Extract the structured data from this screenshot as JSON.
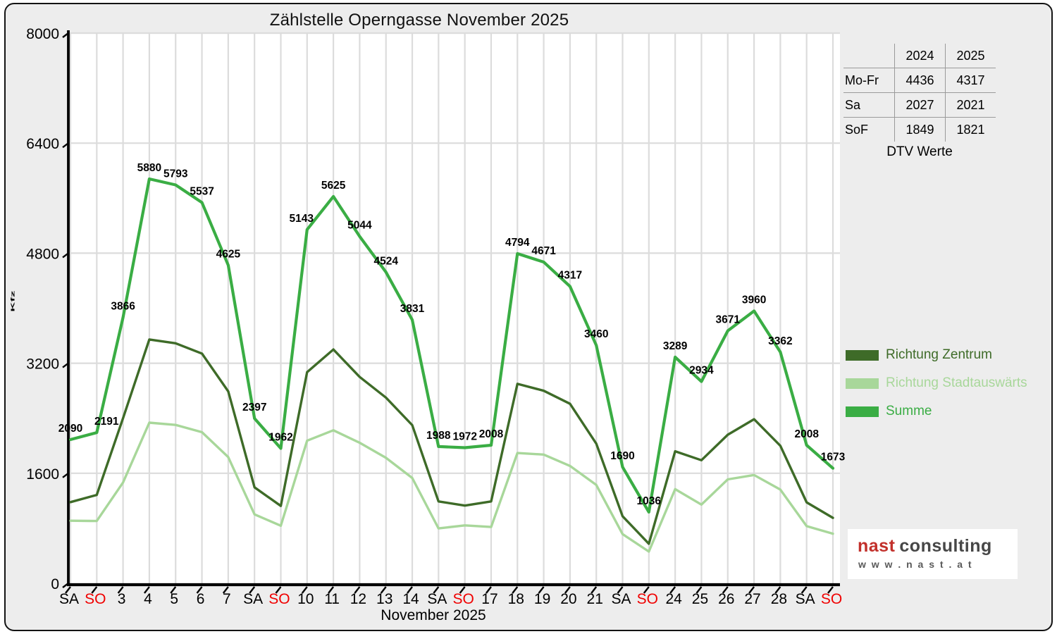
{
  "title": "Zählstelle Operngasse November 2025",
  "chart_data": {
    "type": "line",
    "xlabel": "November 2025",
    "ylabel": "Kfz",
    "x_labels": [
      "SA",
      "SO",
      "3",
      "4",
      "5",
      "6",
      "7",
      "SA",
      "SO",
      "10",
      "11",
      "12",
      "13",
      "14",
      "SA",
      "SO",
      "17",
      "18",
      "19",
      "20",
      "21",
      "SA",
      "SO",
      "24",
      "25",
      "26",
      "27",
      "28",
      "SA",
      "SO"
    ],
    "sunday_indices": [
      1,
      8,
      15,
      22,
      29
    ],
    "sunday_color": "#f00000",
    "weekday_color": "#000000",
    "y_ticks": [
      0,
      1600,
      3200,
      4800,
      6400,
      8000
    ],
    "ylim": [
      0,
      8000
    ],
    "grid": true,
    "grid_color": "#dcdcdc",
    "legend_position": "right",
    "series": [
      {
        "name": "Richtung Stadtauswärts",
        "color": "#a8d79a",
        "width": 3.4,
        "labeled": false,
        "values": [
          910,
          906,
          1466,
          2335,
          2303,
          2197,
          1835,
          1002,
          837,
          2073,
          2225,
          2044,
          1824,
          1531,
          798,
          842,
          818,
          1894,
          1871,
          1707,
          1430,
          715,
          461,
          1369,
          1144,
          1511,
          1574,
          1362,
          831,
          721
        ]
      },
      {
        "name": "Richtung Zentrum",
        "color": "#3e6b28",
        "width": 3.4,
        "labeled": false,
        "values": [
          1180,
          1285,
          2400,
          3545,
          3490,
          3340,
          2790,
          1395,
          1125,
          3070,
          3400,
          3000,
          2700,
          2300,
          1190,
          1130,
          1190,
          2900,
          2800,
          2610,
          2030,
          975,
          575,
          1920,
          1790,
          2160,
          2386,
          2000,
          1177,
          952
        ]
      },
      {
        "name": "Summe",
        "color": "#3aad44",
        "width": 4.2,
        "labeled": true,
        "values": [
          2090,
          2191,
          3866,
          5880,
          5793,
          5537,
          4625,
          2397,
          1962,
          5143,
          5625,
          5044,
          4524,
          3831,
          1988,
          1972,
          2008,
          4794,
          4671,
          4317,
          3460,
          1690,
          1036,
          3289,
          2934,
          3671,
          3960,
          3362,
          2008,
          1673
        ]
      }
    ],
    "label_dx": {
      "1": 14,
      "9": -8
    },
    "label_color": "#000000"
  },
  "table": {
    "col_headers": [
      "2024",
      "2025"
    ],
    "rows": [
      {
        "label": "Mo-Fr",
        "v2024": "4436",
        "v2025": "4317"
      },
      {
        "label": "Sa",
        "v2024": "2027",
        "v2025": "2021"
      },
      {
        "label": "SoF",
        "v2024": "1849",
        "v2025": "1821"
      }
    ],
    "caption": "DTV Werte"
  },
  "legend": {
    "items": [
      {
        "label": "Richtung Zentrum",
        "color": "#3e6b28"
      },
      {
        "label": "Richtung Stadtauswärts",
        "color": "#a8d79a"
      },
      {
        "label": "Summe",
        "color": "#3aad44"
      }
    ]
  },
  "logo": {
    "brand_red": "nast",
    "brand_gray": "consulting",
    "url_text": "w w w . n a s t . a t",
    "red": "#c2302b",
    "gray": "#474747"
  }
}
